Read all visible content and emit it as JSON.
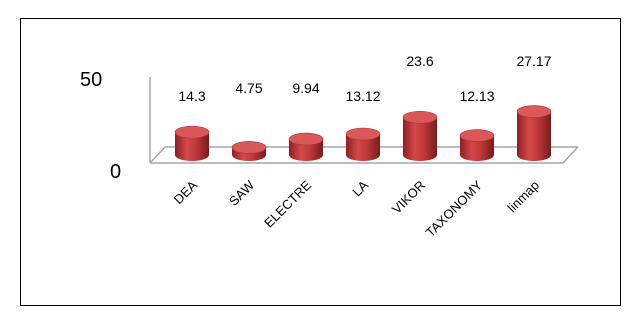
{
  "chart_data": {
    "type": "bar",
    "categories": [
      "DEA",
      "SAW",
      "ELECTRE",
      "LA",
      "VIKOR",
      "TAXONOMY",
      "linmap"
    ],
    "values": [
      14.3,
      4.75,
      9.94,
      13.12,
      23.6,
      12.13,
      27.17
    ],
    "data_labels": [
      "14.3",
      "4.75",
      "9.94",
      "13.12",
      "23.6",
      "12.13",
      "27.17"
    ],
    "y_ticks": [
      "0",
      "50"
    ],
    "ylim": [
      0,
      50
    ],
    "grid": false,
    "legend": "none",
    "title": "",
    "xlabel": "",
    "ylabel": "",
    "bar_style": "3d-cylinder",
    "colors": {
      "bar": "#c0393b",
      "bar_dark": "#8e1f22",
      "bar_top": "#d9595a",
      "axis": "#a6a6a6"
    }
  }
}
